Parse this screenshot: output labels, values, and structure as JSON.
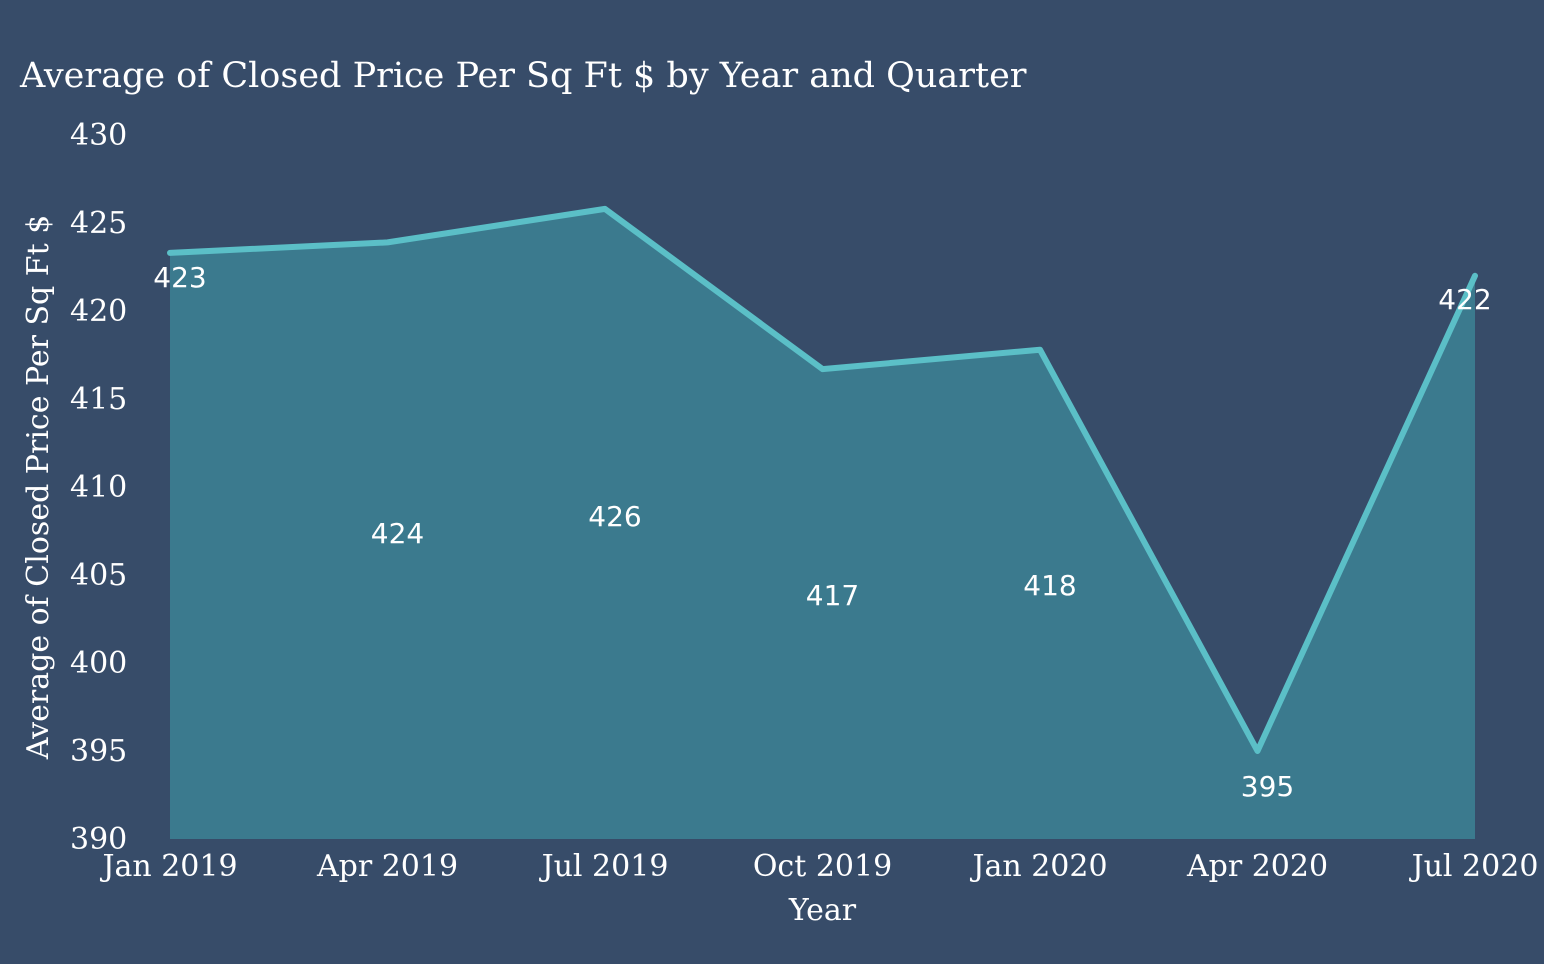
{
  "chart_data": {
    "type": "area",
    "title": "Average of Closed Price Per Sq Ft $ by Year and Quarter",
    "xlabel": "Year",
    "ylabel": "Average of Closed Price Per Sq Ft $",
    "categories": [
      "Jan 2019",
      "Apr 2019",
      "Jul 2019",
      "Oct 2019",
      "Jan 2020",
      "Apr 2020",
      "Jul 2020"
    ],
    "x_tick_labels": [
      "Jan 2019",
      "Apr 2019",
      "Jul 2019",
      "Oct 2019",
      "Jan 2020",
      "Apr 2020",
      "Jul 2020"
    ],
    "series": [
      {
        "values": [
          423.3,
          423.9,
          425.8,
          416.7,
          417.8,
          395.0,
          422.0
        ],
        "data_labels": [
          "423",
          "424",
          "426",
          "417",
          "418",
          "395",
          "422"
        ],
        "line_color": "#5bbfc7",
        "fill_color": "#3b7a8e"
      }
    ],
    "ylim": [
      390,
      430
    ],
    "y_ticks": [
      390,
      395,
      400,
      405,
      410,
      415,
      420,
      425,
      430
    ],
    "y_tick_labels": [
      "390",
      "395",
      "400",
      "405",
      "410",
      "415",
      "420",
      "425",
      "430"
    ],
    "grid": false,
    "legend": "none",
    "background_color": "#374c69"
  }
}
